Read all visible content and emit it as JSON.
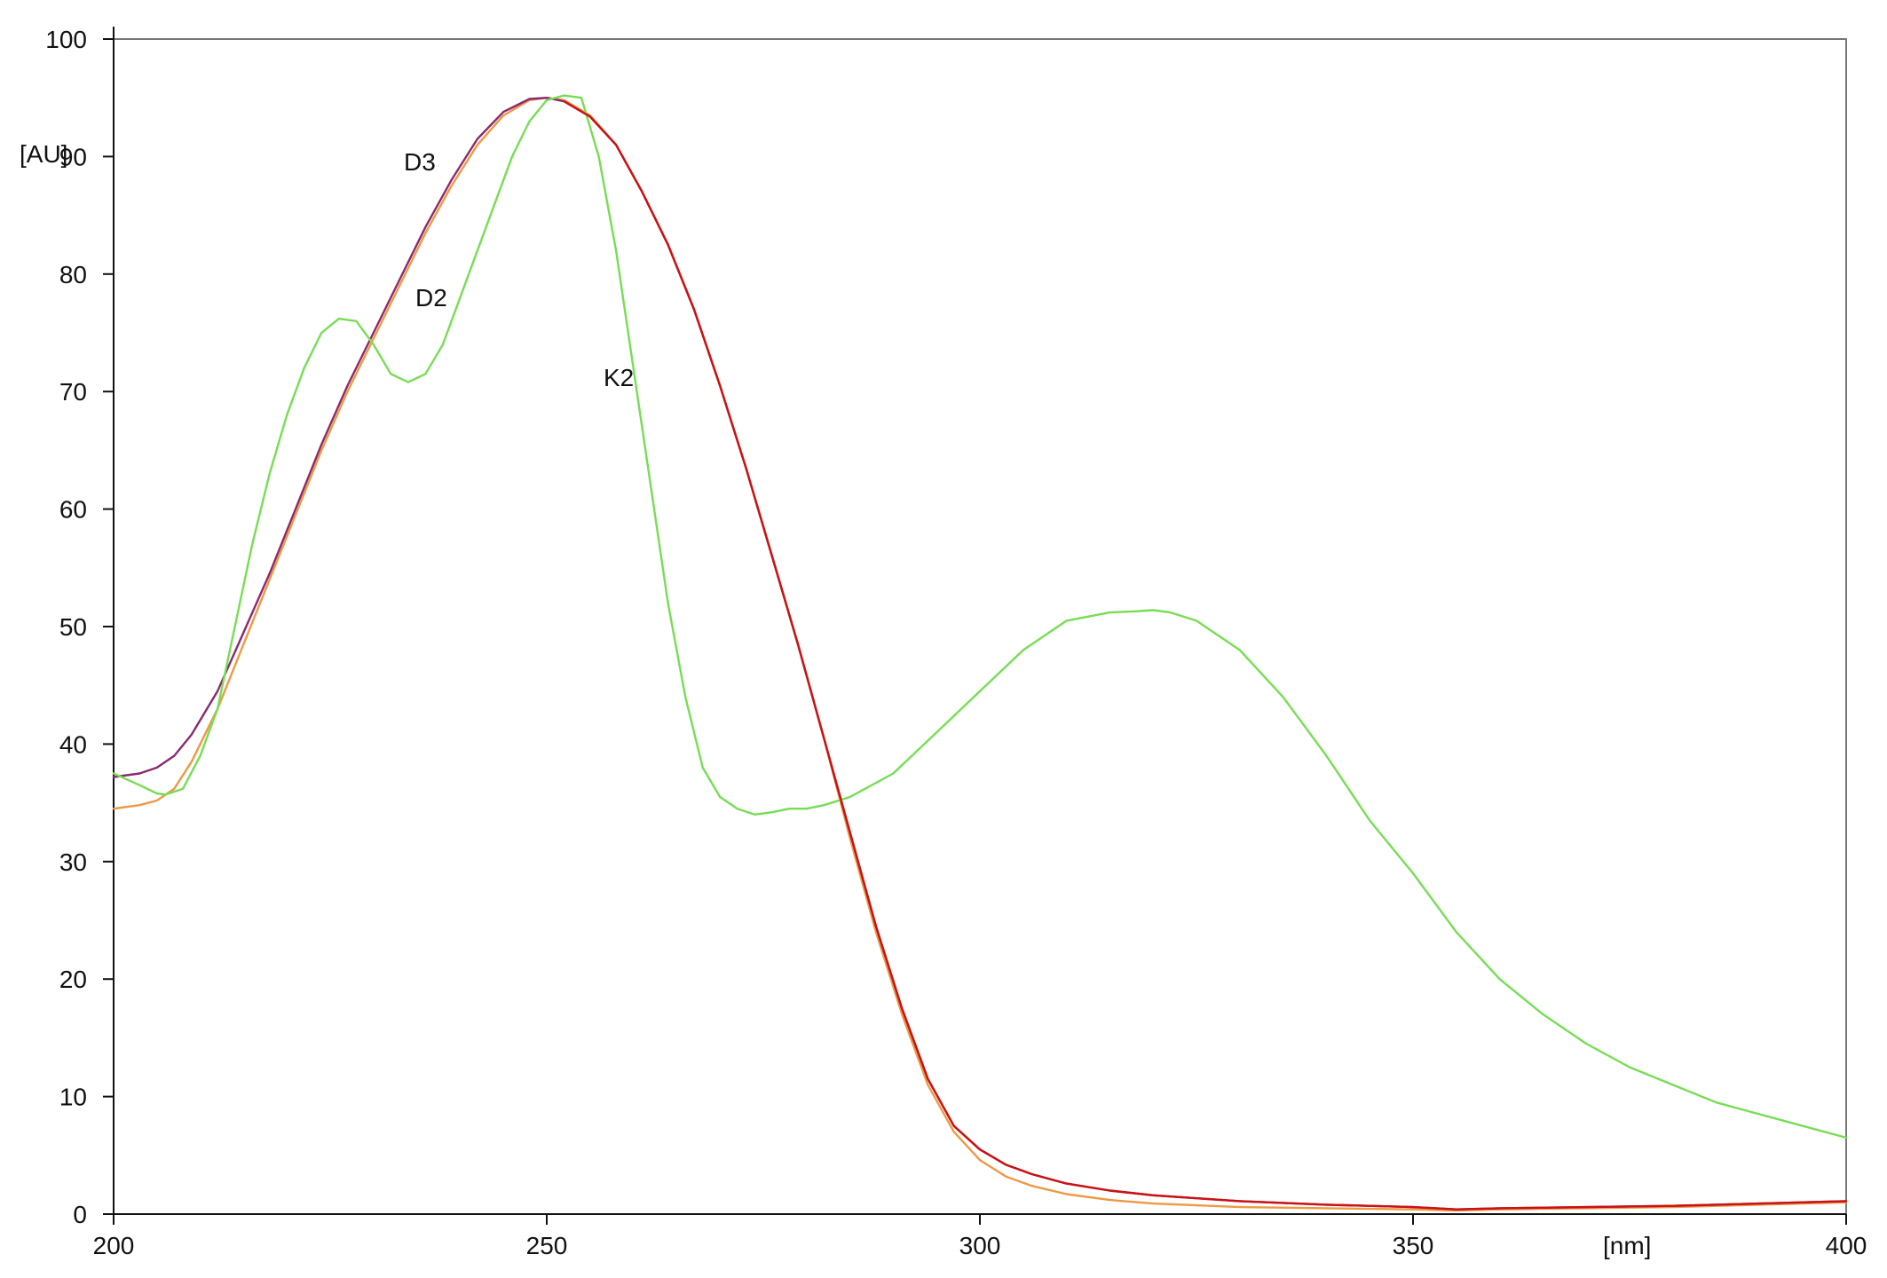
{
  "chart_data": {
    "type": "line",
    "title": "",
    "xlabel": "[nm]",
    "ylabel": "[AU]",
    "xlim": [
      200,
      400
    ],
    "ylim": [
      0,
      100
    ],
    "x_ticks": [
      "200",
      "250",
      "300",
      "350",
      "400"
    ],
    "y_ticks": [
      "0",
      "10",
      "20",
      "30",
      "40",
      "50",
      "60",
      "70",
      "80",
      "90",
      "100"
    ],
    "grid": false,
    "legend": "none",
    "colors": {
      "K2": "#77dd55",
      "D2": "#ee9944",
      "D3": "#8a2a6e",
      "D3_tail": "#cc1111"
    },
    "series": [
      {
        "name": "K2",
        "color": "#77dd55",
        "x": [
          200,
          203,
          205,
          206,
          208,
          210,
          212,
          214,
          216,
          218,
          220,
          222,
          224,
          226,
          228,
          230,
          232,
          234,
          236,
          238,
          240,
          242,
          244,
          246,
          248,
          250,
          252,
          254,
          256,
          258,
          260,
          262,
          264,
          266,
          268,
          270,
          272,
          274,
          276,
          278,
          280,
          282,
          285,
          290,
          295,
          300,
          305,
          310,
          315,
          318,
          320,
          322,
          325,
          330,
          335,
          340,
          345,
          350,
          355,
          360,
          365,
          370,
          375,
          380,
          385,
          390,
          395,
          400
        ],
        "y": [
          37.5,
          36.5,
          35.8,
          35.7,
          36.2,
          39,
          43,
          50,
          57,
          63,
          68,
          72,
          75,
          76.2,
          76,
          74,
          71.5,
          70.8,
          71.5,
          74,
          78,
          82,
          86,
          90,
          93,
          94.8,
          95.2,
          95,
          90,
          82,
          72,
          62,
          52,
          44,
          38,
          35.5,
          34.5,
          34,
          34.2,
          34.5,
          34.5,
          34.8,
          35.5,
          37.5,
          41,
          44.5,
          48,
          50.5,
          51.2,
          51.3,
          51.4,
          51.2,
          50.5,
          48,
          44,
          39,
          33.5,
          29,
          24,
          20,
          17,
          14.5,
          12.5,
          11,
          9.5,
          8.5,
          7.5,
          6.5
        ]
      },
      {
        "name": "D2",
        "color": "#ee9944",
        "x": [
          200,
          203,
          205,
          207,
          209,
          212,
          215,
          218,
          221,
          224,
          227,
          230,
          233,
          236,
          239,
          242,
          245,
          248,
          250,
          252,
          255,
          258,
          261,
          264,
          267,
          270,
          273,
          276,
          279,
          282,
          285,
          288,
          291,
          294,
          297,
          300,
          303,
          306,
          310,
          315,
          320,
          330,
          340,
          350,
          355,
          360,
          370,
          380,
          390,
          400
        ],
        "y": [
          34.5,
          34.8,
          35.2,
          36.2,
          38.5,
          43,
          48.5,
          54,
          59.5,
          65,
          70,
          74.5,
          79,
          83.5,
          87.5,
          91,
          93.5,
          94.8,
          95,
          94.8,
          93.5,
          91,
          87,
          82.5,
          77,
          70.5,
          63.5,
          56,
          48.5,
          40.5,
          32,
          24,
          17,
          11,
          7,
          4.6,
          3.2,
          2.4,
          1.7,
          1.2,
          0.9,
          0.6,
          0.5,
          0.4,
          0.3,
          0.4,
          0.5,
          0.6,
          0.8,
          1.0
        ]
      },
      {
        "name": "D3",
        "color": "#8a2a6e",
        "x": [
          200,
          203,
          205,
          207,
          209,
          212,
          215,
          218,
          221,
          224,
          227,
          230,
          233,
          236,
          239,
          242,
          245,
          248,
          250,
          252,
          255,
          258,
          261,
          264,
          267,
          270,
          273,
          276,
          279,
          282,
          285,
          288,
          291,
          294,
          297,
          300,
          303,
          306,
          310,
          315,
          320,
          330,
          340,
          350,
          355,
          360,
          370,
          380,
          390,
          400
        ],
        "y": [
          37.2,
          37.5,
          38,
          39,
          40.8,
          44.5,
          49.5,
          54.5,
          60,
          65.5,
          70.5,
          75,
          79.5,
          84,
          88,
          91.5,
          93.8,
          94.9,
          95,
          94.7,
          93.4,
          91,
          87,
          82.5,
          77,
          70.5,
          63.5,
          56,
          48.5,
          40.5,
          32.5,
          24.5,
          17.5,
          11.5,
          7.5,
          5.5,
          4.2,
          3.4,
          2.6,
          2.0,
          1.6,
          1.1,
          0.8,
          0.6,
          0.4,
          0.5,
          0.6,
          0.7,
          0.9,
          1.1
        ]
      }
    ]
  },
  "labels": {
    "y_unit": "[AU]",
    "x_unit": "[nm]",
    "k2": "K2",
    "d2": "D2",
    "d3": "D3"
  }
}
